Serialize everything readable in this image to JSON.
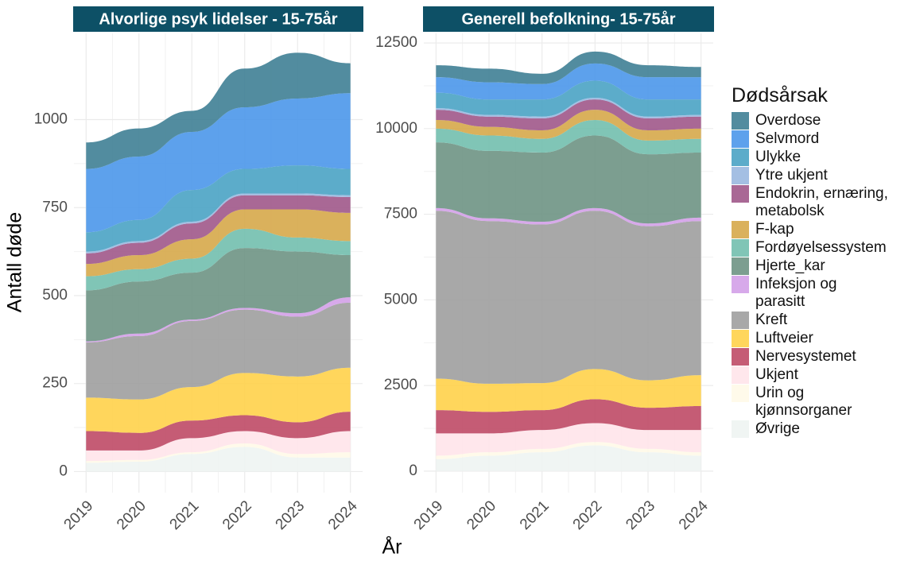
{
  "x_label": "År",
  "y_label": "Antall døde",
  "legend": {
    "title": "Dødsårsak",
    "entries": [
      {
        "name": "Overdose",
        "color": "#3f7f95"
      },
      {
        "name": "Selvmord",
        "color": "#4b97ea"
      },
      {
        "name": "Ulykke",
        "color": "#4aa3c4"
      },
      {
        "name": "Ytre ukjent",
        "color": "#9ab8e0"
      },
      {
        "name": "Endokrin, ernæring,\nmetabolsk",
        "color": "#a0588a"
      },
      {
        "name": "F-kap",
        "color": "#d6a94a"
      },
      {
        "name": "Fordøyelsessystem",
        "color": "#72bfae"
      },
      {
        "name": "Hjerte_kar",
        "color": "#6e9484"
      },
      {
        "name": "Infeksjon og\nparasitt",
        "color": "#d3a0e8"
      },
      {
        "name": "Kreft",
        "color": "#9e9e9e"
      },
      {
        "name": "Luftveier",
        "color": "#ffd24a"
      },
      {
        "name": "Nervesystemet",
        "color": "#bf4a66"
      },
      {
        "name": "Ukjent",
        "color": "#ffe4ea"
      },
      {
        "name": "Urin og\nkjønnsorganer",
        "color": "#fffae8"
      },
      {
        "name": "Øvrige",
        "color": "#eef4f2"
      }
    ]
  },
  "chart_data": [
    {
      "type": "area",
      "stacked": true,
      "title": "Alvorlige psyk lidelser - 15-75år",
      "x": [
        2019,
        2020,
        2021,
        2022,
        2023,
        2024
      ],
      "xlim": [
        2018.77,
        2024.23
      ],
      "xticks": [
        2019,
        2020,
        2021,
        2022,
        2023,
        2024
      ],
      "ylim": [
        -60,
        1245
      ],
      "yticks": [
        0,
        250,
        500,
        750,
        1000
      ],
      "grid": true,
      "series": [
        {
          "values": [
            75,
            80,
            60,
            110,
            130,
            85
          ]
        },
        {
          "values": [
            180,
            180,
            165,
            175,
            190,
            215
          ]
        },
        {
          "values": [
            55,
            60,
            90,
            70,
            80,
            75
          ]
        },
        {
          "values": [
            5,
            5,
            5,
            5,
            5,
            5
          ]
        },
        {
          "values": [
            30,
            35,
            45,
            40,
            40,
            45
          ]
        },
        {
          "values": [
            35,
            40,
            55,
            55,
            80,
            80
          ]
        },
        {
          "values": [
            40,
            35,
            40,
            55,
            40,
            40
          ]
        },
        {
          "values": [
            145,
            148,
            133,
            170,
            175,
            120
          ]
        },
        {
          "values": [
            3,
            7,
            4,
            5,
            10,
            15
          ]
        },
        {
          "values": [
            157,
            180,
            188,
            180,
            170,
            185
          ]
        },
        {
          "values": [
            95,
            95,
            95,
            120,
            130,
            125
          ]
        },
        {
          "values": [
            55,
            50,
            50,
            45,
            45,
            55
          ]
        },
        {
          "values": [
            30,
            27,
            40,
            35,
            45,
            60
          ]
        },
        {
          "values": [
            5,
            5,
            5,
            10,
            10,
            15
          ]
        },
        {
          "values": [
            25,
            28,
            50,
            70,
            40,
            40
          ]
        }
      ]
    },
    {
      "type": "area",
      "stacked": true,
      "title": "Generell befolkning- 15-75år",
      "x": [
        2019,
        2020,
        2021,
        2022,
        2023,
        2024
      ],
      "xlim": [
        2018.77,
        2024.23
      ],
      "xticks": [
        2019,
        2020,
        2021,
        2022,
        2023,
        2024
      ],
      "ylim": [
        -630,
        12780
      ],
      "yticks": [
        0,
        2500,
        5000,
        7500,
        10000,
        12500
      ],
      "grid": true,
      "series": [
        {
          "values": [
            350,
            400,
            300,
            350,
            350,
            300
          ]
        },
        {
          "values": [
            450,
            500,
            450,
            500,
            650,
            650
          ]
        },
        {
          "values": [
            450,
            450,
            500,
            500,
            500,
            450
          ]
        },
        {
          "values": [
            50,
            50,
            50,
            50,
            50,
            50
          ]
        },
        {
          "values": [
            300,
            300,
            350,
            300,
            350,
            350
          ]
        },
        {
          "values": [
            250,
            250,
            250,
            300,
            300,
            300
          ]
        },
        {
          "values": [
            400,
            450,
            400,
            450,
            400,
            400
          ]
        },
        {
          "values": [
            1920,
            1970,
            2020,
            2120,
            2020,
            1900
          ]
        },
        {
          "values": [
            80,
            80,
            80,
            80,
            80,
            100
          ]
        },
        {
          "values": [
            4900,
            4750,
            4630,
            4620,
            4500,
            4500
          ]
        },
        {
          "values": [
            920,
            820,
            790,
            880,
            800,
            900
          ]
        },
        {
          "values": [
            680,
            630,
            580,
            700,
            650,
            700
          ]
        },
        {
          "values": [
            650,
            550,
            550,
            550,
            550,
            650
          ]
        },
        {
          "values": [
            100,
            100,
            100,
            100,
            100,
            100
          ]
        },
        {
          "values": [
            350,
            450,
            550,
            750,
            550,
            450
          ]
        }
      ]
    }
  ]
}
